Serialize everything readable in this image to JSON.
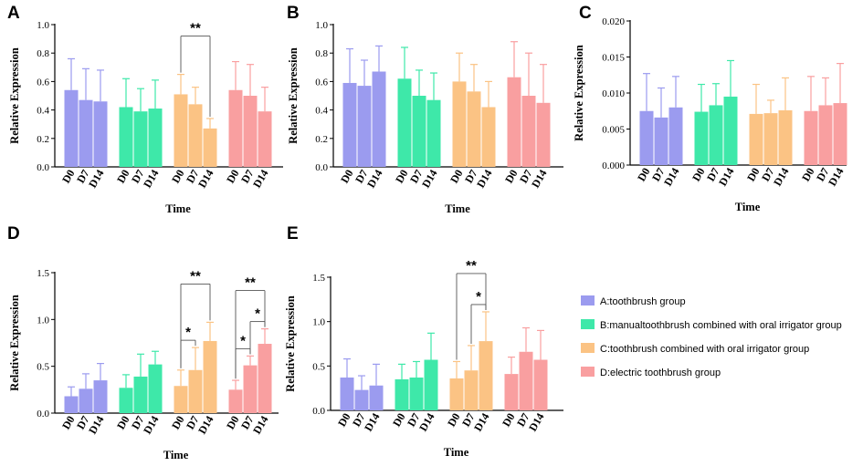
{
  "colors": {
    "A": "#9b9bef",
    "B": "#3ee8a9",
    "C": "#fbc384",
    "D": "#f99fa0"
  },
  "legend": [
    {
      "key": "A",
      "label": "A:toothbrush group"
    },
    {
      "key": "B",
      "label": "B:manualtoothbrush combined with oral irrigator group"
    },
    {
      "key": "C",
      "label": "C:toothbrush combined with oral irrigator group"
    },
    {
      "key": "D",
      "label": "D:electric toothbrush group"
    }
  ],
  "chart_data": [
    {
      "id": "A",
      "type": "bar",
      "ylabel": "Relative Expression",
      "xlabel": "Time",
      "ylim": [
        0,
        1.0
      ],
      "yticks": [
        "0.0",
        "0.2",
        "0.4",
        "0.6",
        "0.8",
        "1.0"
      ],
      "timepoints": [
        "D0",
        "D7",
        "D14"
      ],
      "series": [
        {
          "group": "A",
          "values": [
            0.54,
            0.47,
            0.46
          ],
          "errors": [
            0.22,
            0.22,
            0.22
          ]
        },
        {
          "group": "B",
          "values": [
            0.42,
            0.39,
            0.41
          ],
          "errors": [
            0.2,
            0.16,
            0.2
          ]
        },
        {
          "group": "C",
          "values": [
            0.51,
            0.44,
            0.27
          ],
          "errors": [
            0.14,
            0.12,
            0.07
          ]
        },
        {
          "group": "D",
          "values": [
            0.54,
            0.5,
            0.39
          ],
          "errors": [
            0.2,
            0.22,
            0.17
          ]
        }
      ],
      "annotations": [
        {
          "group": "C",
          "from": "D0",
          "to": "D14",
          "label": "**"
        }
      ]
    },
    {
      "id": "B",
      "type": "bar",
      "ylabel": "Relative Expression",
      "xlabel": "Time",
      "ylim": [
        0,
        1.0
      ],
      "yticks": [
        "0.0",
        "0.2",
        "0.4",
        "0.6",
        "0.8",
        "1.0"
      ],
      "timepoints": [
        "D0",
        "D7",
        "D14"
      ],
      "series": [
        {
          "group": "A",
          "values": [
            0.59,
            0.57,
            0.67
          ],
          "errors": [
            0.24,
            0.18,
            0.18
          ]
        },
        {
          "group": "B",
          "values": [
            0.62,
            0.5,
            0.47
          ],
          "errors": [
            0.22,
            0.18,
            0.19
          ]
        },
        {
          "group": "C",
          "values": [
            0.6,
            0.53,
            0.42
          ],
          "errors": [
            0.2,
            0.19,
            0.18
          ]
        },
        {
          "group": "D",
          "values": [
            0.63,
            0.5,
            0.45
          ],
          "errors": [
            0.25,
            0.3,
            0.27
          ]
        }
      ],
      "annotations": []
    },
    {
      "id": "C",
      "type": "bar",
      "ylabel": "Relative Expression",
      "xlabel": "Time",
      "ylim": [
        0,
        0.02
      ],
      "yticks": [
        "0.000",
        "0.005",
        "0.010",
        "0.015",
        "0.020"
      ],
      "timepoints": [
        "D0",
        "D7",
        "D14"
      ],
      "series": [
        {
          "group": "A",
          "values": [
            0.0075,
            0.0066,
            0.008
          ],
          "errors": [
            0.0052,
            0.0041,
            0.0043
          ]
        },
        {
          "group": "B",
          "values": [
            0.0074,
            0.0083,
            0.0095
          ],
          "errors": [
            0.0038,
            0.003,
            0.005
          ]
        },
        {
          "group": "C",
          "values": [
            0.0071,
            0.0072,
            0.0076
          ],
          "errors": [
            0.0041,
            0.0018,
            0.0045
          ]
        },
        {
          "group": "D",
          "values": [
            0.0075,
            0.0083,
            0.0086
          ],
          "errors": [
            0.0048,
            0.0038,
            0.0055
          ]
        }
      ],
      "annotations": []
    },
    {
      "id": "D",
      "type": "bar",
      "ylabel": "Relative Expression",
      "xlabel": "Time",
      "ylim": [
        0,
        1.5
      ],
      "yticks": [
        "0.0",
        "0.5",
        "1.0",
        "1.5"
      ],
      "timepoints": [
        "D0",
        "D7",
        "D14"
      ],
      "series": [
        {
          "group": "A",
          "values": [
            0.18,
            0.26,
            0.35
          ],
          "errors": [
            0.1,
            0.16,
            0.18
          ]
        },
        {
          "group": "B",
          "values": [
            0.27,
            0.39,
            0.52
          ],
          "errors": [
            0.14,
            0.24,
            0.14
          ]
        },
        {
          "group": "C",
          "values": [
            0.29,
            0.46,
            0.77
          ],
          "errors": [
            0.17,
            0.24,
            0.2
          ]
        },
        {
          "group": "D",
          "values": [
            0.25,
            0.51,
            0.74
          ],
          "errors": [
            0.1,
            0.1,
            0.16
          ]
        }
      ],
      "annotations": [
        {
          "group": "C",
          "from": "D0",
          "to": "D7",
          "label": "*"
        },
        {
          "group": "C",
          "from": "D0",
          "to": "D14",
          "label": "**"
        },
        {
          "group": "D",
          "from": "D0",
          "to": "D7",
          "label": "*"
        },
        {
          "group": "D",
          "from": "D7",
          "to": "D14",
          "label": "*"
        },
        {
          "group": "D",
          "from": "D0",
          "to": "D14",
          "label": "**"
        }
      ]
    },
    {
      "id": "E",
      "type": "bar",
      "ylabel": "Relative Expression",
      "xlabel": "Time",
      "ylim": [
        0,
        1.5
      ],
      "yticks": [
        "0.0",
        "0.5",
        "1.0",
        "1.5"
      ],
      "timepoints": [
        "D0",
        "D7",
        "D14"
      ],
      "series": [
        {
          "group": "A",
          "values": [
            0.37,
            0.23,
            0.28
          ],
          "errors": [
            0.21,
            0.16,
            0.24
          ]
        },
        {
          "group": "B",
          "values": [
            0.35,
            0.37,
            0.57
          ],
          "errors": [
            0.17,
            0.18,
            0.3
          ]
        },
        {
          "group": "C",
          "values": [
            0.36,
            0.45,
            0.78
          ],
          "errors": [
            0.19,
            0.28,
            0.33
          ]
        },
        {
          "group": "D",
          "values": [
            0.41,
            0.66,
            0.57
          ],
          "errors": [
            0.19,
            0.27,
            0.33
          ]
        }
      ],
      "annotations": [
        {
          "group": "C",
          "from": "D7",
          "to": "D14",
          "label": "*"
        },
        {
          "group": "C",
          "from": "D0",
          "to": "D14",
          "label": "**"
        }
      ]
    }
  ]
}
